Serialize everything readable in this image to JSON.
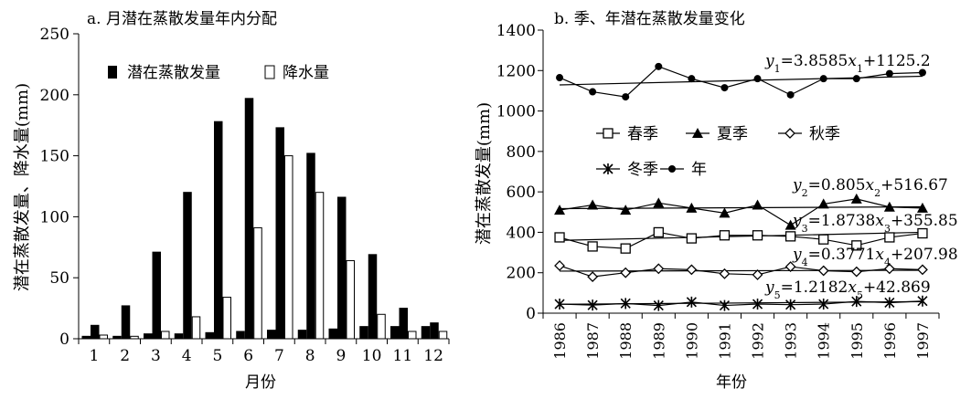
{
  "chart_data": [
    {
      "type": "bar",
      "title": "a. 月潜在蒸散发量年内分配",
      "xlabel": "月份",
      "ylabel": "潜在蒸散发量、降水量(mm)",
      "ylim": [
        0,
        250
      ],
      "yticks": [
        0,
        50,
        100,
        150,
        200,
        250
      ],
      "categories": [
        "1",
        "2",
        "3",
        "4",
        "5",
        "6",
        "7",
        "8",
        "9",
        "10",
        "11",
        "12"
      ],
      "legend_position": "top",
      "series": [
        {
          "name": "潜在蒸散发量",
          "color": "#000000",
          "style": "filled",
          "values": [
            11,
            27,
            71,
            120,
            178,
            197,
            173,
            152,
            116,
            69,
            25,
            13
          ]
        },
        {
          "name": "降水量",
          "color": "#ffffff",
          "style": "hollow",
          "values": [
            3,
            2,
            6,
            18,
            34,
            91,
            150,
            120,
            64,
            20,
            6,
            6
          ]
        }
      ],
      "extra_bars": {
        "color": "#000000",
        "values": [
          2,
          2,
          4,
          4,
          5,
          6,
          7,
          7,
          8,
          10,
          10,
          10
        ]
      }
    },
    {
      "type": "line",
      "title": "b. 季、年潜在蒸散发量变化",
      "xlabel": "年份",
      "ylabel": "潜在蒸散发量(mm)",
      "ylim": [
        0,
        1400
      ],
      "yticks": [
        0,
        200,
        400,
        600,
        800,
        1000,
        1200,
        1400
      ],
      "x": [
        1986,
        1987,
        1988,
        1989,
        1990,
        1991,
        1992,
        1993,
        1994,
        1995,
        1996,
        1997
      ],
      "legend_position": "center-left",
      "series": [
        {
          "name": "春季",
          "marker": "square-open",
          "values": [
            375,
            330,
            320,
            400,
            370,
            385,
            385,
            380,
            365,
            335,
            375,
            395
          ],
          "trend": [
            360,
            400
          ]
        },
        {
          "name": "夏季",
          "marker": "triangle-filled",
          "values": [
            510,
            535,
            510,
            545,
            520,
            495,
            535,
            435,
            540,
            565,
            525,
            520
          ],
          "trend": [
            517,
            526
          ]
        },
        {
          "name": "秋季",
          "marker": "diamond-open",
          "values": [
            235,
            180,
            200,
            220,
            215,
            195,
            190,
            230,
            210,
            205,
            220,
            215
          ],
          "trend": [
            208,
            212
          ]
        },
        {
          "name": "冬季",
          "marker": "star",
          "values": [
            45,
            40,
            48,
            38,
            55,
            38,
            45,
            42,
            45,
            58,
            52,
            60
          ],
          "trend": [
            44,
            57
          ]
        },
        {
          "name": "年",
          "marker": "circle-filled",
          "values": [
            1165,
            1095,
            1070,
            1220,
            1160,
            1115,
            1160,
            1080,
            1160,
            1160,
            1185,
            1190
          ],
          "trend": [
            1129,
            1172
          ]
        }
      ],
      "annotations": {
        "y1": {
          "var": "y",
          "sub": "1",
          "eq": "=3.8585",
          "xvar": "x",
          "xsub": "1",
          "const": "+1125.2"
        },
        "y2": {
          "var": "y",
          "sub": "2",
          "eq": "=0.805",
          "xvar": "x",
          "xsub": "2",
          "const": "+516.67"
        },
        "y3": {
          "var": "y",
          "sub": "3",
          "eq": "=1.8738",
          "xvar": "x",
          "xsub": "3",
          "const": "+355.85"
        },
        "y4": {
          "var": "y",
          "sub": "4",
          "eq": "=0.3771",
          "xvar": "x",
          "xsub": "4",
          "const": "+207.98"
        },
        "y5": {
          "var": "y",
          "sub": "5",
          "eq": "=1.2182",
          "xvar": "x",
          "xsub": "5",
          "const": "+42.869"
        }
      }
    }
  ]
}
